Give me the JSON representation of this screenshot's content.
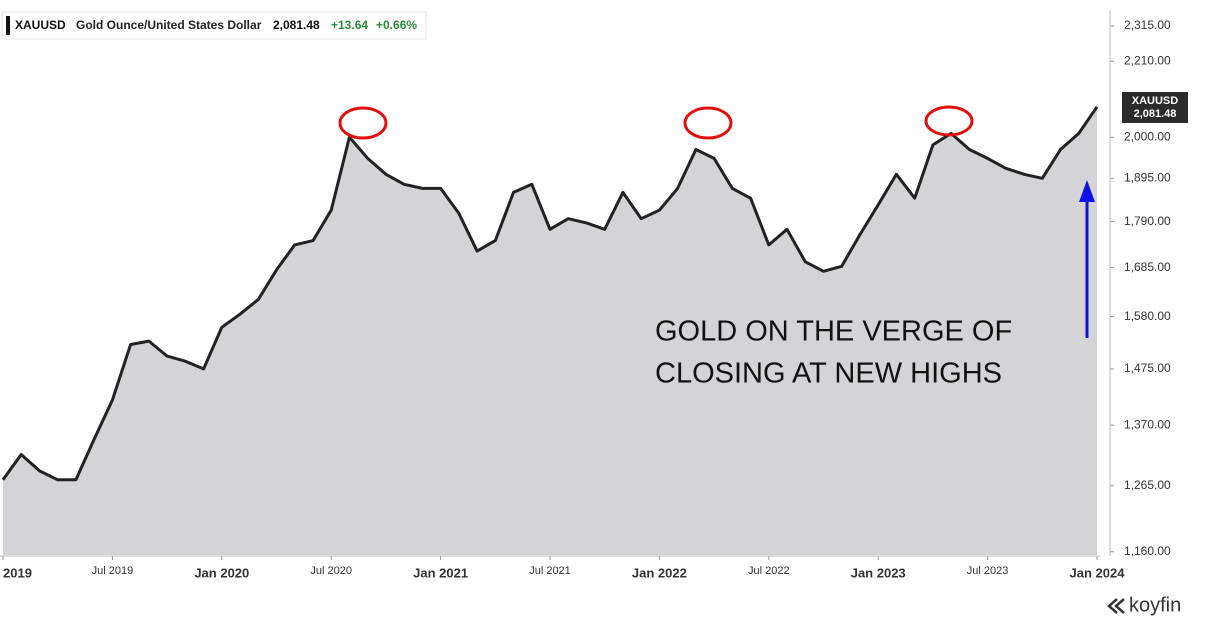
{
  "chart_data": {
    "type": "area",
    "header": {
      "name": "Gold Ounce/United States Dollar",
      "price": "2,081.48",
      "change": "+13.64",
      "change_pct": "+0.66%"
    },
    "price_tag": {
      "price": "2,081.48"
    },
    "annotation": [
      "GOLD ON THE VERGE OF",
      "CLOSING AT NEW HIGHS"
    ],
    "brand": "koyfin",
    "x": [
      "2019-01",
      "2019-02",
      "2019-03",
      "2019-04",
      "2019-05",
      "2019-06",
      "2019-07",
      "2019-08",
      "2019-09",
      "2019-10",
      "2019-11",
      "2019-12",
      "2020-01",
      "2020-02",
      "2020-03",
      "2020-04",
      "2020-05",
      "2020-06",
      "2020-07",
      "2020-08",
      "2020-09",
      "2020-10",
      "2020-11",
      "2020-12",
      "2021-01",
      "2021-02",
      "2021-03",
      "2021-04",
      "2021-05",
      "2021-06",
      "2021-07",
      "2021-08",
      "2021-09",
      "2021-10",
      "2021-11",
      "2021-12",
      "2022-01",
      "2022-02",
      "2022-03",
      "2022-04",
      "2022-05",
      "2022-06",
      "2022-07",
      "2022-08",
      "2022-09",
      "2022-10",
      "2022-11",
      "2022-12",
      "2023-01",
      "2023-02",
      "2023-03",
      "2023-04",
      "2023-05",
      "2023-06",
      "2023-07",
      "2023-08",
      "2023-09",
      "2023-10",
      "2023-11",
      "2023-12",
      "2024-01"
    ],
    "series": [
      {
        "name": "XAUUSD",
        "color": "#222222",
        "fill": "#d4d4d7",
        "values": [
          1275,
          1318,
          1290,
          1275,
          1275,
          1345,
          1416,
          1523,
          1530,
          1500,
          1490,
          1475,
          1558,
          1585,
          1616,
          1680,
          1736,
          1746,
          1817,
          2000,
          1945,
          1905,
          1880,
          1870,
          1870,
          1810,
          1722,
          1746,
          1860,
          1880,
          1772,
          1797,
          1787,
          1772,
          1860,
          1797,
          1817,
          1870,
          1968,
          1945,
          1870,
          1846,
          1736,
          1772,
          1698,
          1677,
          1688,
          1760,
          1830,
          1905,
          1846,
          1980,
          2010,
          1968,
          1945,
          1920,
          1905,
          1895,
          1968,
          2010,
          2081.48
        ]
      }
    ],
    "log_scale": true,
    "ylim": [
      1155,
      2364
    ],
    "yticks": [
      {
        "value": 1160,
        "label": "1,160.00"
      },
      {
        "value": 1265,
        "label": "1,265.00"
      },
      {
        "value": 1370,
        "label": "1,370.00"
      },
      {
        "value": 1475,
        "label": "1,475.00"
      },
      {
        "value": 1580,
        "label": "1,580.00"
      },
      {
        "value": 1685,
        "label": "1,685.00"
      },
      {
        "value": 1790,
        "label": "1,790.00"
      },
      {
        "value": 1895,
        "label": "1,895.00"
      },
      {
        "value": 2000,
        "label": "2,000.00"
      },
      {
        "value": 2210,
        "label": "2,210.00"
      },
      {
        "value": 2315,
        "label": "2,315.00"
      }
    ],
    "xticks": [
      {
        "value": "2019-01",
        "label": "2019"
      },
      {
        "value": "2019-07",
        "label": "Jul 2019"
      },
      {
        "value": "2020-01",
        "label": "Jan 2020"
      },
      {
        "value": "2020-07",
        "label": "Jul 2020"
      },
      {
        "value": "2021-01",
        "label": "Jan 2021"
      },
      {
        "value": "2021-07",
        "label": "Jul 2021"
      },
      {
        "value": "2022-01",
        "label": "Jan 2022"
      },
      {
        "value": "2022-07",
        "label": "Jul 2022"
      },
      {
        "value": "2023-01",
        "label": "Jan 2023"
      },
      {
        "value": "2023-07",
        "label": "Jul 2023"
      },
      {
        "value": "2024-01",
        "label": "Jan 2024"
      }
    ]
  }
}
